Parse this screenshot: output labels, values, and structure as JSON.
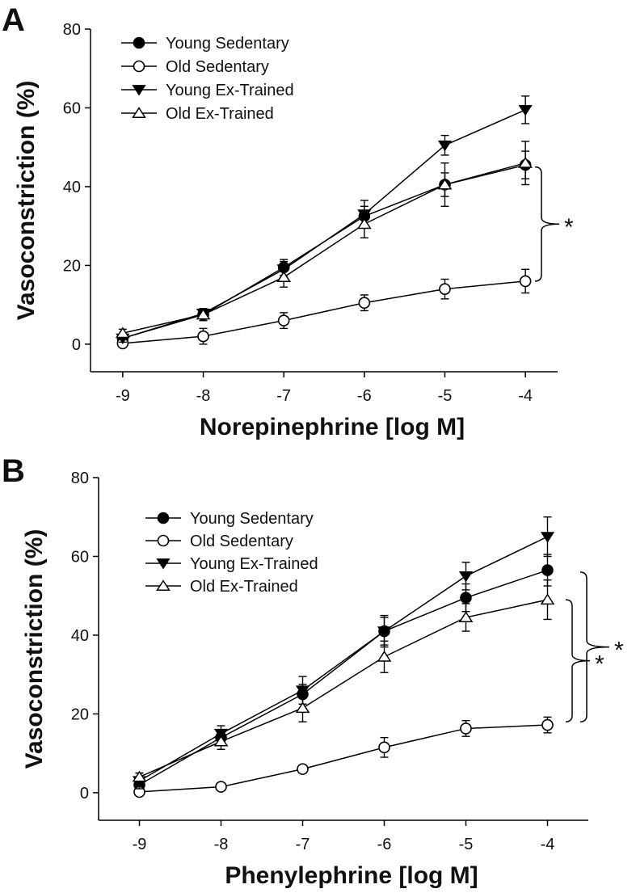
{
  "chart_data": [
    {
      "panel_label": "A",
      "type": "line",
      "xlabel": "Norepinephrine [log M]",
      "ylabel": "Vasoconstriction (%)",
      "x": [
        -9,
        -8,
        -7,
        -6,
        -5,
        -4
      ],
      "xticks": [
        "-9",
        "-8",
        "-7",
        "-6",
        "-5",
        "-4"
      ],
      "xlim": [
        -9.4,
        -3.6
      ],
      "ylim": [
        -7,
        80
      ],
      "yticks": [
        0,
        20,
        40,
        60,
        80
      ],
      "grid": false,
      "legend_position": "top-left",
      "series": [
        {
          "name": "Young Sedentary",
          "marker": "circle-filled",
          "values": [
            1.5,
            7.5,
            19.5,
            32.5,
            40.5,
            45.5
          ],
          "errors": [
            1.0,
            1.5,
            2.0,
            2.5,
            3.0,
            3.5
          ]
        },
        {
          "name": "Old Sedentary",
          "marker": "circle-open",
          "values": [
            0.2,
            2.0,
            6.0,
            10.5,
            14.0,
            16.0
          ],
          "errors": [
            0.8,
            2.0,
            2.0,
            2.0,
            2.5,
            3.0
          ]
        },
        {
          "name": "Young Ex-Trained",
          "marker": "triangle-down-filled",
          "values": [
            1.5,
            7.8,
            19.0,
            33.0,
            50.5,
            59.5
          ],
          "errors": [
            1.0,
            1.2,
            2.0,
            3.5,
            2.5,
            3.5
          ]
        },
        {
          "name": "Old Ex-Trained",
          "marker": "triangle-up-open",
          "values": [
            2.8,
            7.5,
            17.0,
            30.5,
            40.5,
            46.0
          ],
          "errors": [
            1.0,
            1.5,
            2.5,
            3.5,
            5.5,
            5.5
          ]
        }
      ],
      "annotations": [
        {
          "text": "*",
          "type": "bracket",
          "y_range": [
            16,
            45
          ]
        }
      ]
    },
    {
      "panel_label": "B",
      "type": "line",
      "xlabel": "Phenylephrine [log M]",
      "ylabel": "Vasoconstriction (%)",
      "x": [
        -9,
        -8,
        -7,
        -6,
        -5,
        -4
      ],
      "xticks": [
        "-9",
        "-8",
        "-7",
        "-6",
        "-5",
        "-4"
      ],
      "xlim": [
        -9.5,
        -3.5
      ],
      "ylim": [
        -7,
        80
      ],
      "yticks": [
        0,
        20,
        40,
        60,
        80
      ],
      "grid": false,
      "legend_position": "top-left",
      "series": [
        {
          "name": "Young Sedentary",
          "marker": "circle-filled",
          "values": [
            2.0,
            14.0,
            25.0,
            41.0,
            49.5,
            56.5
          ],
          "errors": [
            1.5,
            2.0,
            2.5,
            3.5,
            3.5,
            4.0
          ]
        },
        {
          "name": "Old Sedentary",
          "marker": "circle-open",
          "values": [
            0.2,
            1.5,
            6.0,
            11.5,
            16.3,
            17.2
          ],
          "errors": [
            0.5,
            0.5,
            1.0,
            2.5,
            2.0,
            2.0
          ]
        },
        {
          "name": "Young Ex-Trained",
          "marker": "triangle-down-filled",
          "values": [
            3.0,
            15.0,
            26.0,
            41.0,
            55.0,
            65.0
          ],
          "errors": [
            2.0,
            2.0,
            3.5,
            4.0,
            3.5,
            5.0
          ]
        },
        {
          "name": "Old Ex-Trained",
          "marker": "triangle-up-open",
          "values": [
            4.0,
            13.0,
            21.5,
            34.5,
            44.5,
            49.0
          ],
          "errors": [
            1.0,
            2.0,
            3.5,
            4.0,
            3.5,
            5.0
          ]
        }
      ],
      "annotations": [
        {
          "text": "*",
          "type": "bracket",
          "y_range": [
            18,
            49
          ]
        },
        {
          "text": "*",
          "type": "bracket",
          "y_range": [
            18,
            56
          ]
        }
      ]
    }
  ]
}
